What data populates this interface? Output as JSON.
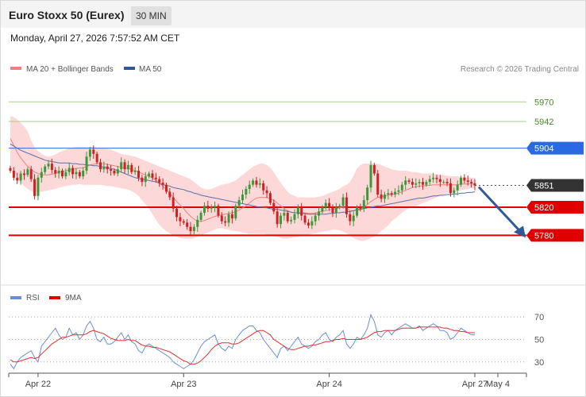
{
  "header": {
    "title": "Euro Stoxx 50 (Eurex)",
    "timeframe": "30 MIN",
    "datetime": "Monday, April 27, 2026 7:57:52 AM CET"
  },
  "legend": {
    "ma_bb": "MA 20 + Bollinger Bands",
    "ma50": "MA 50",
    "copyright": "Research © 2026 Trading Central"
  },
  "rsi_legend": {
    "rsi": "RSI",
    "ma9": "9MA"
  },
  "colors": {
    "up": "#3a9a3a",
    "down": "#cc2222",
    "bb_fill": "#fdd8d8",
    "ma20": "#f08080",
    "ma50": "#5b6fa8",
    "resistance_green": "#a8cf8a",
    "pivot_blue": "#2a6ae0",
    "support_red": "#e00000",
    "current_dark": "#333333",
    "arrow": "#2e5a9a",
    "rsi_line": "#6a8ed6",
    "rsi_ma": "#e03030"
  },
  "chart_data": [
    {
      "type": "candlestick",
      "ylim": [
        5725,
        5985
      ],
      "levels": [
        {
          "value": 5970,
          "label": "5970",
          "kind": "resistance"
        },
        {
          "value": 5942,
          "label": "5942",
          "kind": "resistance"
        },
        {
          "value": 5904,
          "label": "5904",
          "kind": "pivot"
        },
        {
          "value": 5851,
          "label": "5851",
          "kind": "current"
        },
        {
          "value": 5820,
          "label": "5820",
          "kind": "support"
        },
        {
          "value": 5780,
          "label": "5780",
          "kind": "support"
        }
      ],
      "x_ticks": [
        "Apr 22",
        "Apr 23",
        "Apr 24",
        "Apr 27",
        "May 4"
      ],
      "x_tick_index": [
        8,
        50,
        92,
        134,
        150
      ],
      "close": [
        5872,
        5862,
        5858,
        5868,
        5866,
        5874,
        5860,
        5836,
        5862,
        5870,
        5878,
        5882,
        5873,
        5868,
        5872,
        5864,
        5870,
        5876,
        5867,
        5870,
        5864,
        5872,
        5892,
        5902,
        5896,
        5884,
        5874,
        5878,
        5874,
        5872,
        5868,
        5874,
        5884,
        5874,
        5880,
        5870,
        5872,
        5862,
        5856,
        5864,
        5868,
        5862,
        5860,
        5855,
        5852,
        5842,
        5834,
        5818,
        5806,
        5800,
        5798,
        5792,
        5786,
        5792,
        5802,
        5812,
        5822,
        5818,
        5820,
        5822,
        5808,
        5800,
        5798,
        5810,
        5804,
        5822,
        5830,
        5838,
        5846,
        5852,
        5858,
        5852,
        5854,
        5844,
        5840,
        5826,
        5814,
        5796,
        5808,
        5812,
        5800,
        5802,
        5810,
        5820,
        5808,
        5798,
        5794,
        5800,
        5808,
        5814,
        5820,
        5826,
        5820,
        5812,
        5820,
        5822,
        5834,
        5810,
        5800,
        5808,
        5820,
        5818,
        5830,
        5848,
        5880,
        5868,
        5838,
        5832,
        5838,
        5840,
        5838,
        5842,
        5844,
        5852,
        5858,
        5856,
        5852,
        5854,
        5856,
        5852,
        5856,
        5860,
        5862,
        5860,
        5856,
        5856,
        5854,
        5840,
        5844,
        5852,
        5862,
        5858,
        5856,
        5854,
        5851
      ],
      "ma20": [
        5918,
        5908,
        5898,
        5890,
        5884,
        5878,
        5874,
        5870,
        5868,
        5866,
        5866,
        5866,
        5867,
        5868,
        5870,
        5871,
        5872,
        5873,
        5874,
        5875,
        5876,
        5876,
        5878,
        5880,
        5881,
        5882,
        5882,
        5882,
        5881,
        5880,
        5879,
        5878,
        5877,
        5876,
        5875,
        5874,
        5872,
        5870,
        5868,
        5866,
        5864,
        5862,
        5858,
        5855,
        5850,
        5845,
        5840,
        5834,
        5828,
        5823,
        5818,
        5812,
        5807,
        5803,
        5800,
        5800,
        5801,
        5803,
        5805,
        5807,
        5808,
        5809,
        5810,
        5811,
        5812,
        5814,
        5816,
        5819,
        5822,
        5826,
        5830,
        5833,
        5834,
        5834,
        5834,
        5832,
        5830,
        5826,
        5822,
        5818,
        5815,
        5813,
        5812,
        5812,
        5812,
        5812,
        5811,
        5811,
        5812,
        5813,
        5814,
        5815,
        5816,
        5817,
        5818,
        5819,
        5820,
        5818,
        5815,
        5815,
        5817,
        5818,
        5820,
        5824,
        5828,
        5831,
        5834,
        5835,
        5836,
        5837,
        5838,
        5839,
        5840,
        5842,
        5844,
        5846,
        5848,
        5849,
        5850,
        5850,
        5851,
        5851,
        5852,
        5852,
        5852,
        5852,
        5852,
        5852,
        5852,
        5852,
        5853,
        5853,
        5853,
        5853,
        5853
      ],
      "bb_upper": [
        5950,
        5948,
        5945,
        5940,
        5935,
        5928,
        5915,
        5905,
        5900,
        5896,
        5893,
        5892,
        5893,
        5895,
        5898,
        5900,
        5902,
        5904,
        5905,
        5906,
        5906,
        5906,
        5906,
        5906,
        5906,
        5905,
        5904,
        5904,
        5903,
        5902,
        5900,
        5898,
        5896,
        5895,
        5894,
        5893,
        5892,
        5890,
        5888,
        5886,
        5884,
        5882,
        5880,
        5878,
        5876,
        5874,
        5872,
        5870,
        5868,
        5866,
        5864,
        5862,
        5860,
        5856,
        5852,
        5848,
        5846,
        5845,
        5846,
        5848,
        5850,
        5852,
        5853,
        5854,
        5856,
        5858,
        5862,
        5866,
        5870,
        5874,
        5878,
        5880,
        5882,
        5882,
        5880,
        5876,
        5870,
        5862,
        5855,
        5848,
        5842,
        5838,
        5836,
        5834,
        5834,
        5834,
        5834,
        5834,
        5834,
        5835,
        5836,
        5838,
        5840,
        5842,
        5844,
        5846,
        5850,
        5852,
        5856,
        5865,
        5875,
        5880,
        5882,
        5882,
        5882,
        5882,
        5882,
        5880,
        5878,
        5876,
        5874,
        5873,
        5872,
        5872,
        5872,
        5871,
        5870,
        5870,
        5869,
        5868,
        5868,
        5868,
        5868,
        5867,
        5866,
        5866,
        5865,
        5864,
        5864,
        5864,
        5863,
        5863,
        5862,
        5862,
        5862
      ],
      "bb_lower": [
        5880,
        5872,
        5862,
        5855,
        5850,
        5846,
        5843,
        5842,
        5842,
        5842,
        5843,
        5844,
        5845,
        5846,
        5848,
        5849,
        5850,
        5851,
        5852,
        5852,
        5853,
        5852,
        5852,
        5852,
        5852,
        5852,
        5852,
        5851,
        5850,
        5850,
        5849,
        5848,
        5847,
        5846,
        5845,
        5843,
        5840,
        5836,
        5830,
        5824,
        5818,
        5810,
        5802,
        5795,
        5790,
        5786,
        5783,
        5780,
        5778,
        5776,
        5775,
        5775,
        5775,
        5776,
        5778,
        5780,
        5782,
        5784,
        5786,
        5788,
        5790,
        5790,
        5789,
        5788,
        5787,
        5786,
        5785,
        5784,
        5783,
        5782,
        5782,
        5782,
        5782,
        5782,
        5781,
        5780,
        5779,
        5778,
        5776,
        5775,
        5775,
        5776,
        5777,
        5778,
        5779,
        5780,
        5781,
        5782,
        5783,
        5784,
        5785,
        5786,
        5787,
        5788,
        5788,
        5787,
        5785,
        5783,
        5780,
        5776,
        5774,
        5772,
        5772,
        5774,
        5776,
        5778,
        5782,
        5786,
        5790,
        5794,
        5800,
        5804,
        5808,
        5812,
        5816,
        5818,
        5820,
        5822,
        5824,
        5826,
        5828,
        5830,
        5832,
        5834,
        5836,
        5838,
        5840,
        5841,
        5842,
        5843,
        5844,
        5845,
        5846,
        5847,
        5847
      ],
      "ma50": [
        5910,
        5907,
        5904,
        5901,
        5899,
        5897,
        5895,
        5893,
        5891,
        5889,
        5887,
        5886,
        5885,
        5884,
        5883,
        5883,
        5883,
        5883,
        5882,
        5882,
        5881,
        5881,
        5880,
        5880,
        5879,
        5879,
        5878,
        5877,
        5876,
        5875,
        5874,
        5872,
        5870,
        5868,
        5866,
        5864,
        5862,
        5861,
        5860,
        5859,
        5858,
        5857,
        5856,
        5854,
        5852,
        5851,
        5850,
        5848,
        5847,
        5846,
        5845,
        5843,
        5842,
        5840,
        5839,
        5837,
        5836,
        5835,
        5834,
        5833,
        5832,
        5831,
        5830,
        5829,
        5828,
        5827,
        5826,
        5825,
        5824,
        5823,
        5822,
        5821,
        5820,
        5820,
        5819,
        5818,
        5817,
        5817,
        5816,
        5815,
        5814,
        5813,
        5812,
        5812,
        5811,
        5811,
        5810,
        5810,
        5810,
        5810,
        5810,
        5810,
        5811,
        5811,
        5812,
        5812,
        5813,
        5813,
        5814,
        5815,
        5816,
        5817,
        5818,
        5819,
        5820,
        5821,
        5822,
        5822,
        5823,
        5824,
        5825,
        5826,
        5827,
        5828,
        5829,
        5830,
        5831,
        5832,
        5833,
        5833,
        5834,
        5835,
        5836,
        5836,
        5837,
        5837,
        5838,
        5838,
        5839,
        5839,
        5840,
        5840,
        5841,
        5841,
        5842
      ],
      "forecast": {
        "from": 5851,
        "to": 5780
      },
      "legend_placement": "top-left"
    },
    {
      "type": "line",
      "title": "RSI",
      "ylim": [
        20,
        80
      ],
      "y_ticks": [
        70,
        50,
        30
      ],
      "series": [
        {
          "name": "RSI",
          "values": [
            28,
            24,
            30,
            34,
            36,
            38,
            40,
            34,
            30,
            44,
            48,
            52,
            56,
            60,
            54,
            50,
            52,
            60,
            54,
            56,
            50,
            54,
            62,
            66,
            60,
            50,
            48,
            52,
            46,
            46,
            48,
            52,
            56,
            50,
            54,
            48,
            46,
            40,
            38,
            44,
            46,
            44,
            42,
            40,
            38,
            36,
            34,
            30,
            28,
            26,
            24,
            26,
            28,
            32,
            38,
            44,
            48,
            50,
            52,
            54,
            46,
            42,
            40,
            44,
            42,
            50,
            54,
            58,
            60,
            62,
            62,
            58,
            56,
            50,
            46,
            42,
            38,
            34,
            42,
            44,
            40,
            44,
            48,
            52,
            46,
            44,
            42,
            44,
            48,
            50,
            54,
            56,
            50,
            48,
            52,
            54,
            58,
            46,
            42,
            46,
            52,
            50,
            54,
            60,
            72,
            66,
            54,
            52,
            56,
            58,
            54,
            58,
            60,
            62,
            64,
            62,
            60,
            60,
            62,
            58,
            60,
            62,
            64,
            62,
            58,
            58,
            56,
            50,
            52,
            56,
            60,
            58,
            56,
            54,
            54
          ]
        },
        {
          "name": "9MA",
          "values": [
            32,
            30,
            30,
            31,
            32,
            33,
            34,
            33,
            34,
            37,
            40,
            43,
            46,
            48,
            50,
            52,
            52,
            53,
            54,
            54,
            54,
            54,
            55,
            57,
            58,
            57,
            56,
            55,
            53,
            51,
            50,
            49,
            49,
            49,
            50,
            49,
            49,
            47,
            45,
            44,
            44,
            43,
            43,
            42,
            41,
            40,
            39,
            37,
            35,
            33,
            31,
            30,
            28,
            28,
            29,
            31,
            34,
            37,
            41,
            44,
            46,
            47,
            47,
            47,
            46,
            46,
            47,
            49,
            51,
            53,
            55,
            57,
            58,
            58,
            56,
            54,
            50,
            48,
            46,
            44,
            42,
            41,
            41,
            42,
            43,
            44,
            44,
            45,
            45,
            46,
            47,
            48,
            48,
            49,
            50,
            50,
            51,
            50,
            50,
            50,
            50,
            50,
            51,
            52,
            54,
            56,
            57,
            57,
            58,
            58,
            58,
            58,
            59,
            60,
            60,
            60,
            60,
            60,
            61,
            61,
            61,
            61,
            61,
            61,
            61,
            60,
            60,
            59,
            58,
            58,
            57,
            57,
            56,
            56,
            56
          ]
        }
      ],
      "x_ticks": [
        "Apr 22",
        "Apr 23",
        "Apr 24",
        "Apr 27",
        "May 4"
      ],
      "legend_placement": "top-left"
    }
  ]
}
